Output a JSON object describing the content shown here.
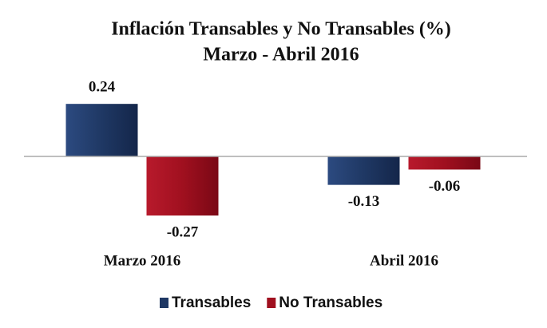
{
  "chart_data": {
    "type": "bar",
    "title": "Inflación Transables y No Transables (%)",
    "subtitle": "Marzo - Abril 2016",
    "categories": [
      "Marzo 2016",
      "Abril 2016"
    ],
    "series": [
      {
        "name": "Transables",
        "color": "#1f3864",
        "values": [
          0.24,
          -0.13
        ]
      },
      {
        "name": "No Transables",
        "color": "#a0101f",
        "values": [
          -0.27,
          -0.06
        ]
      }
    ],
    "ylim": [
      -0.35,
      0.35
    ],
    "legend": "bottom"
  }
}
